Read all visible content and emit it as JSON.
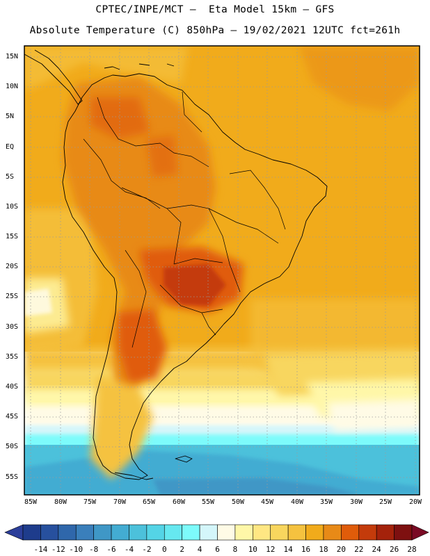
{
  "header": {
    "line1": "CPTEC/INPE/MCT –  Eta Model 15km – GFS",
    "line2": "Absolute Temperature (C) 850hPa – 19/02/2021 12UTC fct=261h"
  },
  "map": {
    "lat_labels": [
      "15N",
      "10N",
      "5N",
      "EQ",
      "5S",
      "10S",
      "15S",
      "20S",
      "25S",
      "30S",
      "35S",
      "40S",
      "45S",
      "50S",
      "55S"
    ],
    "lon_labels": [
      "85W",
      "80W",
      "75W",
      "70W",
      "65W",
      "60W",
      "55W",
      "50W",
      "45W",
      "40W",
      "35W",
      "30W",
      "25W",
      "20W"
    ],
    "region": "South America"
  },
  "colorbar": {
    "labels": [
      "-14",
      "-12",
      "-10",
      "-8",
      "-6",
      "-4",
      "-2",
      "0",
      "2",
      "4",
      "6",
      "8",
      "10",
      "12",
      "14",
      "16",
      "18",
      "20",
      "22",
      "24",
      "26",
      "28"
    ],
    "colors": [
      "#1e3c8c",
      "#27509e",
      "#2f67ab",
      "#3a7fbb",
      "#3f97c6",
      "#43acd2",
      "#4cc1db",
      "#54d4e6",
      "#66e8f0",
      "#7dfbfb",
      "#d4f6fa",
      "#fffbe6",
      "#fff7a8",
      "#ffe783",
      "#f8d65e",
      "#f5c23f",
      "#f1ab1b",
      "#e88a17",
      "#e05c0a",
      "#c43b0b",
      "#a4220b",
      "#7e1010"
    ],
    "under_color": "#2b3e9a",
    "over_color": "#7a0a24"
  }
}
